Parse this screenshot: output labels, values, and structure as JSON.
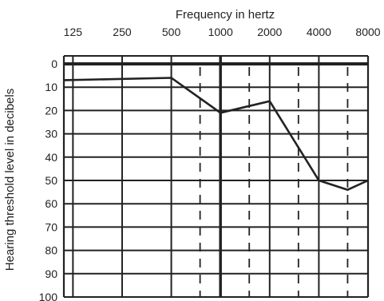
{
  "chart_data": {
    "type": "line",
    "title": "Frequency in hertz",
    "xlabel": "Frequency in hertz",
    "ylabel": "Hearing threshold level in decibels",
    "x_scale": "log",
    "x_ticks": [
      "125",
      "250",
      "500",
      "1000",
      "2000",
      "4000",
      "8000"
    ],
    "x_tick_values": [
      125,
      250,
      500,
      1000,
      2000,
      4000,
      8000
    ],
    "x_minor_dashed": [
      750,
      1500,
      3000,
      6000
    ],
    "x_range": [
      110,
      8000
    ],
    "y_ticks": [
      "0",
      "10",
      "20",
      "30",
      "40",
      "50",
      "60",
      "70",
      "80",
      "90",
      "100"
    ],
    "y_tick_values": [
      0,
      10,
      20,
      30,
      40,
      50,
      60,
      70,
      80,
      90,
      100
    ],
    "y_range": [
      -3,
      100
    ],
    "y_inverted": true,
    "grid": true,
    "series": [
      {
        "x": [
          110,
          500,
          1000,
          2000,
          4000,
          6000,
          8000
        ],
        "y": [
          7,
          6,
          21,
          16,
          50,
          54,
          50
        ]
      }
    ],
    "colors": {
      "line": "#222222",
      "grid": "#222222"
    }
  }
}
